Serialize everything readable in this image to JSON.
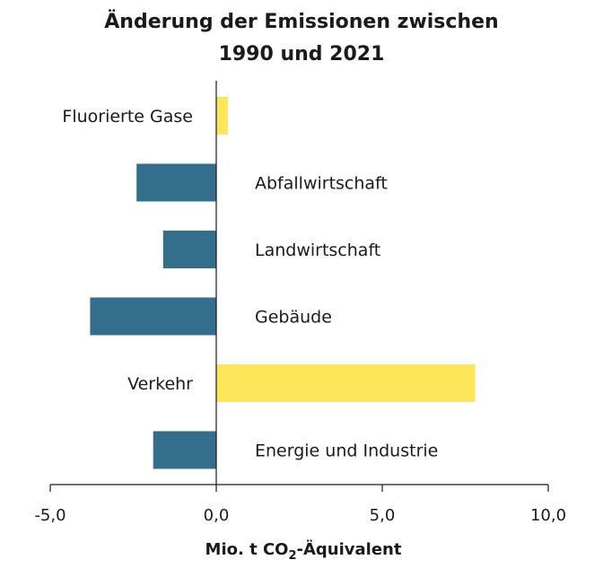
{
  "chart_data": {
    "type": "bar",
    "orientation": "horizontal",
    "title_lines": [
      "Änderung der Emissionen zwischen",
      "1990 und 2021"
    ],
    "xlabel": {
      "prefix": "Mio. t CO",
      "subscript": "2",
      "suffix": "-Äquivalent"
    },
    "categories": [
      "Fluorierte Gase",
      "Abfallwirtschaft",
      "Landwirtschaft",
      "Gebäude",
      "Verkehr",
      "Energie und Industrie"
    ],
    "values": [
      0.35,
      -2.4,
      -1.6,
      -3.8,
      7.8,
      -1.9
    ],
    "xlim": [
      -5,
      10
    ],
    "xticks": [
      -5,
      0,
      5,
      10
    ],
    "xtick_labels": [
      "-5,0",
      "0,0",
      "5,0",
      "10,0"
    ],
    "grid": false,
    "colors": {
      "positive": "#fde65a",
      "negative": "#336e8c",
      "axis": "#1a1a1a"
    }
  }
}
